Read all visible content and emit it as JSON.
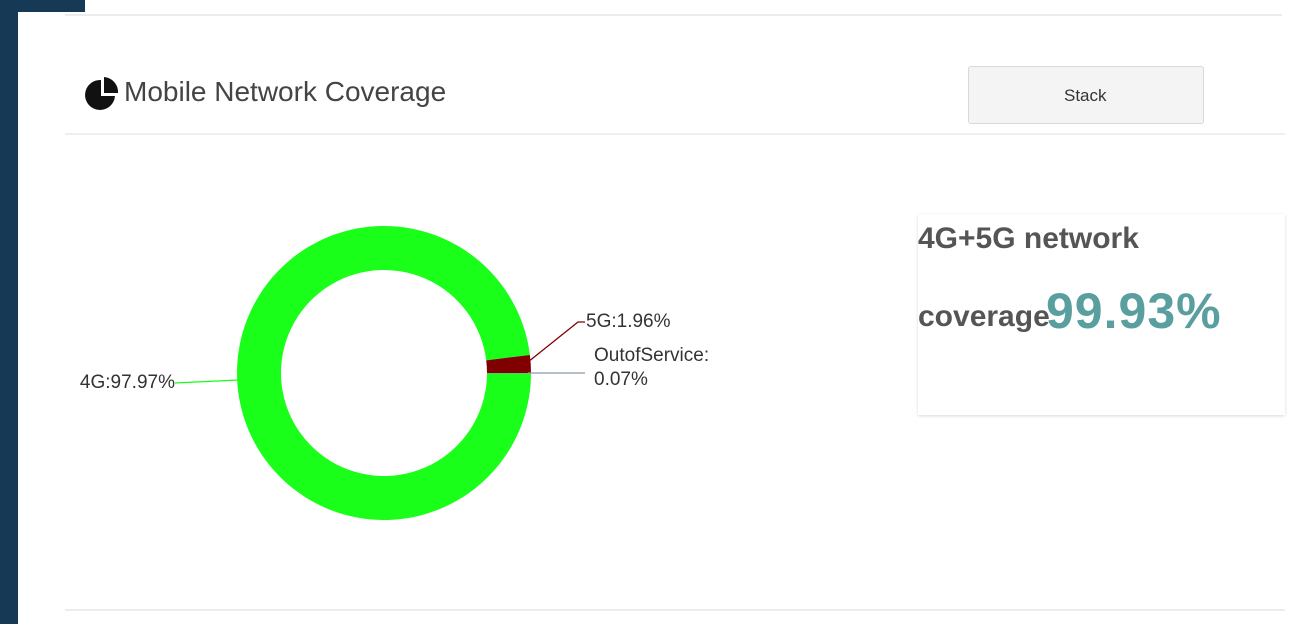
{
  "header": {
    "title": "Mobile Network Coverage"
  },
  "button": {
    "label": "Stack"
  },
  "stat": {
    "line1": "4G+5G network",
    "line2": "coverage",
    "value": "99.93%"
  },
  "chart_data": {
    "type": "pie",
    "categories": [
      "4G",
      "5G",
      "OutofService"
    ],
    "values": [
      97.97,
      1.96,
      0.07
    ],
    "value_labels": [
      "4G:97.97%",
      "5G:1.96%",
      "OutofService:0.07%"
    ],
    "colors": [
      "#19ff19",
      "#800000",
      "#8a9aab"
    ]
  }
}
